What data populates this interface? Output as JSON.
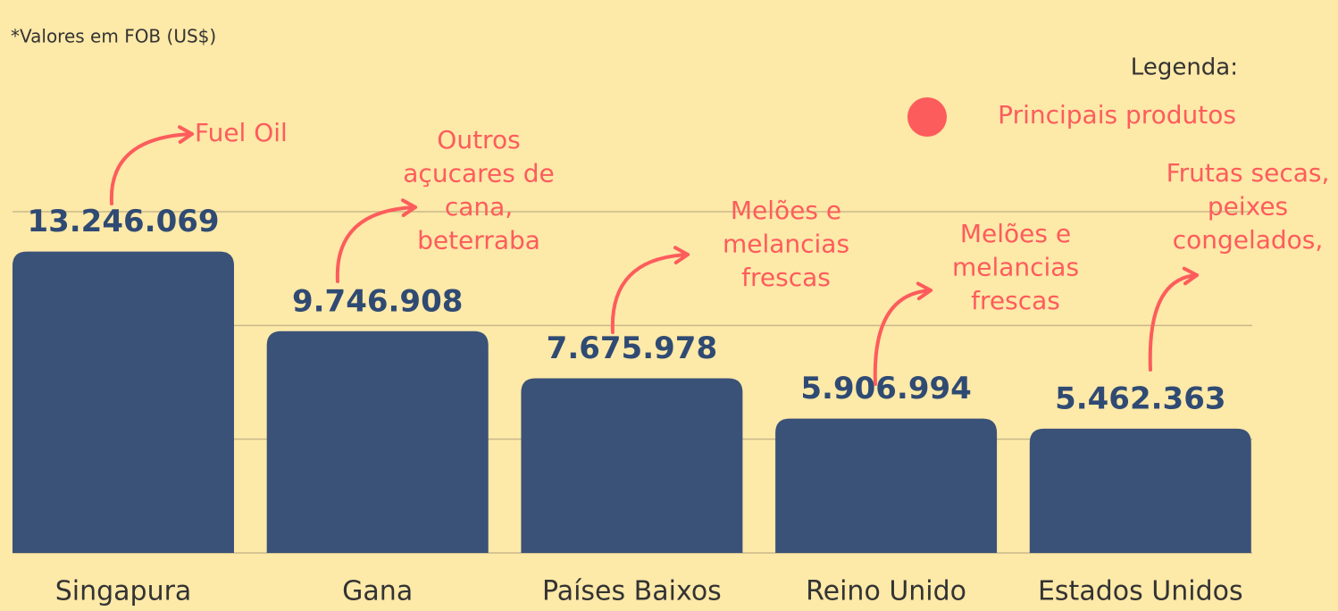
{
  "chart_data": {
    "type": "bar",
    "subtitle": "*Valores em FOB (US$)",
    "categories": [
      "Singapura",
      "Gana",
      "Países Baixos",
      "Reino Unido",
      "Estados Unidos"
    ],
    "values": [
      13246069,
      9746908,
      7675978,
      5906994,
      5462363
    ],
    "value_labels": [
      "13.246.069",
      "9.746.908",
      "7.675.978",
      "5.906.994",
      "5.462.363"
    ],
    "annotations": [
      [
        "Fuel Oil"
      ],
      [
        "Outros",
        "açucares de",
        "cana,",
        "beterraba"
      ],
      [
        "Melões e",
        "melancias",
        "frescas"
      ],
      [
        "Melões e",
        "melancias",
        "frescas"
      ],
      [
        "Frutas secas,",
        "peixes",
        "congelados,"
      ]
    ],
    "color": "#3a5278",
    "legend": {
      "title": "Legenda:",
      "label": "Principais produtos",
      "color": "#fd5c5c"
    },
    "ylim": [
      0,
      15000000
    ],
    "yticks": [
      0,
      5000000,
      10000000,
      15000000
    ],
    "grid": true
  }
}
